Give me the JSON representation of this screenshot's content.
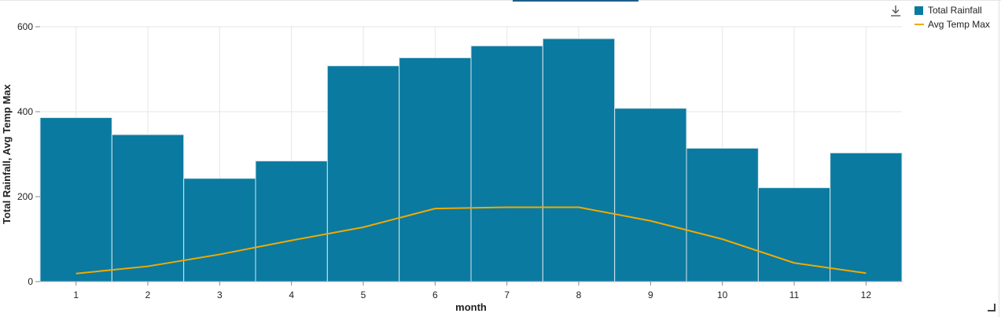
{
  "chart_data": {
    "type": "bar",
    "categories": [
      "1",
      "2",
      "3",
      "4",
      "5",
      "6",
      "7",
      "8",
      "9",
      "10",
      "11",
      "12"
    ],
    "series": [
      {
        "name": "Total Rainfall",
        "kind": "bar",
        "color": "#0a7aa0",
        "values": [
          386,
          346,
          243,
          284,
          508,
          527,
          555,
          572,
          408,
          314,
          221,
          303
        ]
      },
      {
        "name": "Avg Temp Max",
        "kind": "line",
        "color": "#f2a900",
        "values": [
          19,
          36,
          64,
          97,
          128,
          172,
          175,
          175,
          143,
          100,
          44,
          20
        ]
      }
    ],
    "xlabel": "month",
    "ylabel": "Total Rainfall, Avg Temp Max",
    "ylim": [
      0,
      600
    ],
    "yticks": [
      "0",
      "200",
      "400",
      "600"
    ],
    "grid": true,
    "legend_position": "top-right"
  }
}
